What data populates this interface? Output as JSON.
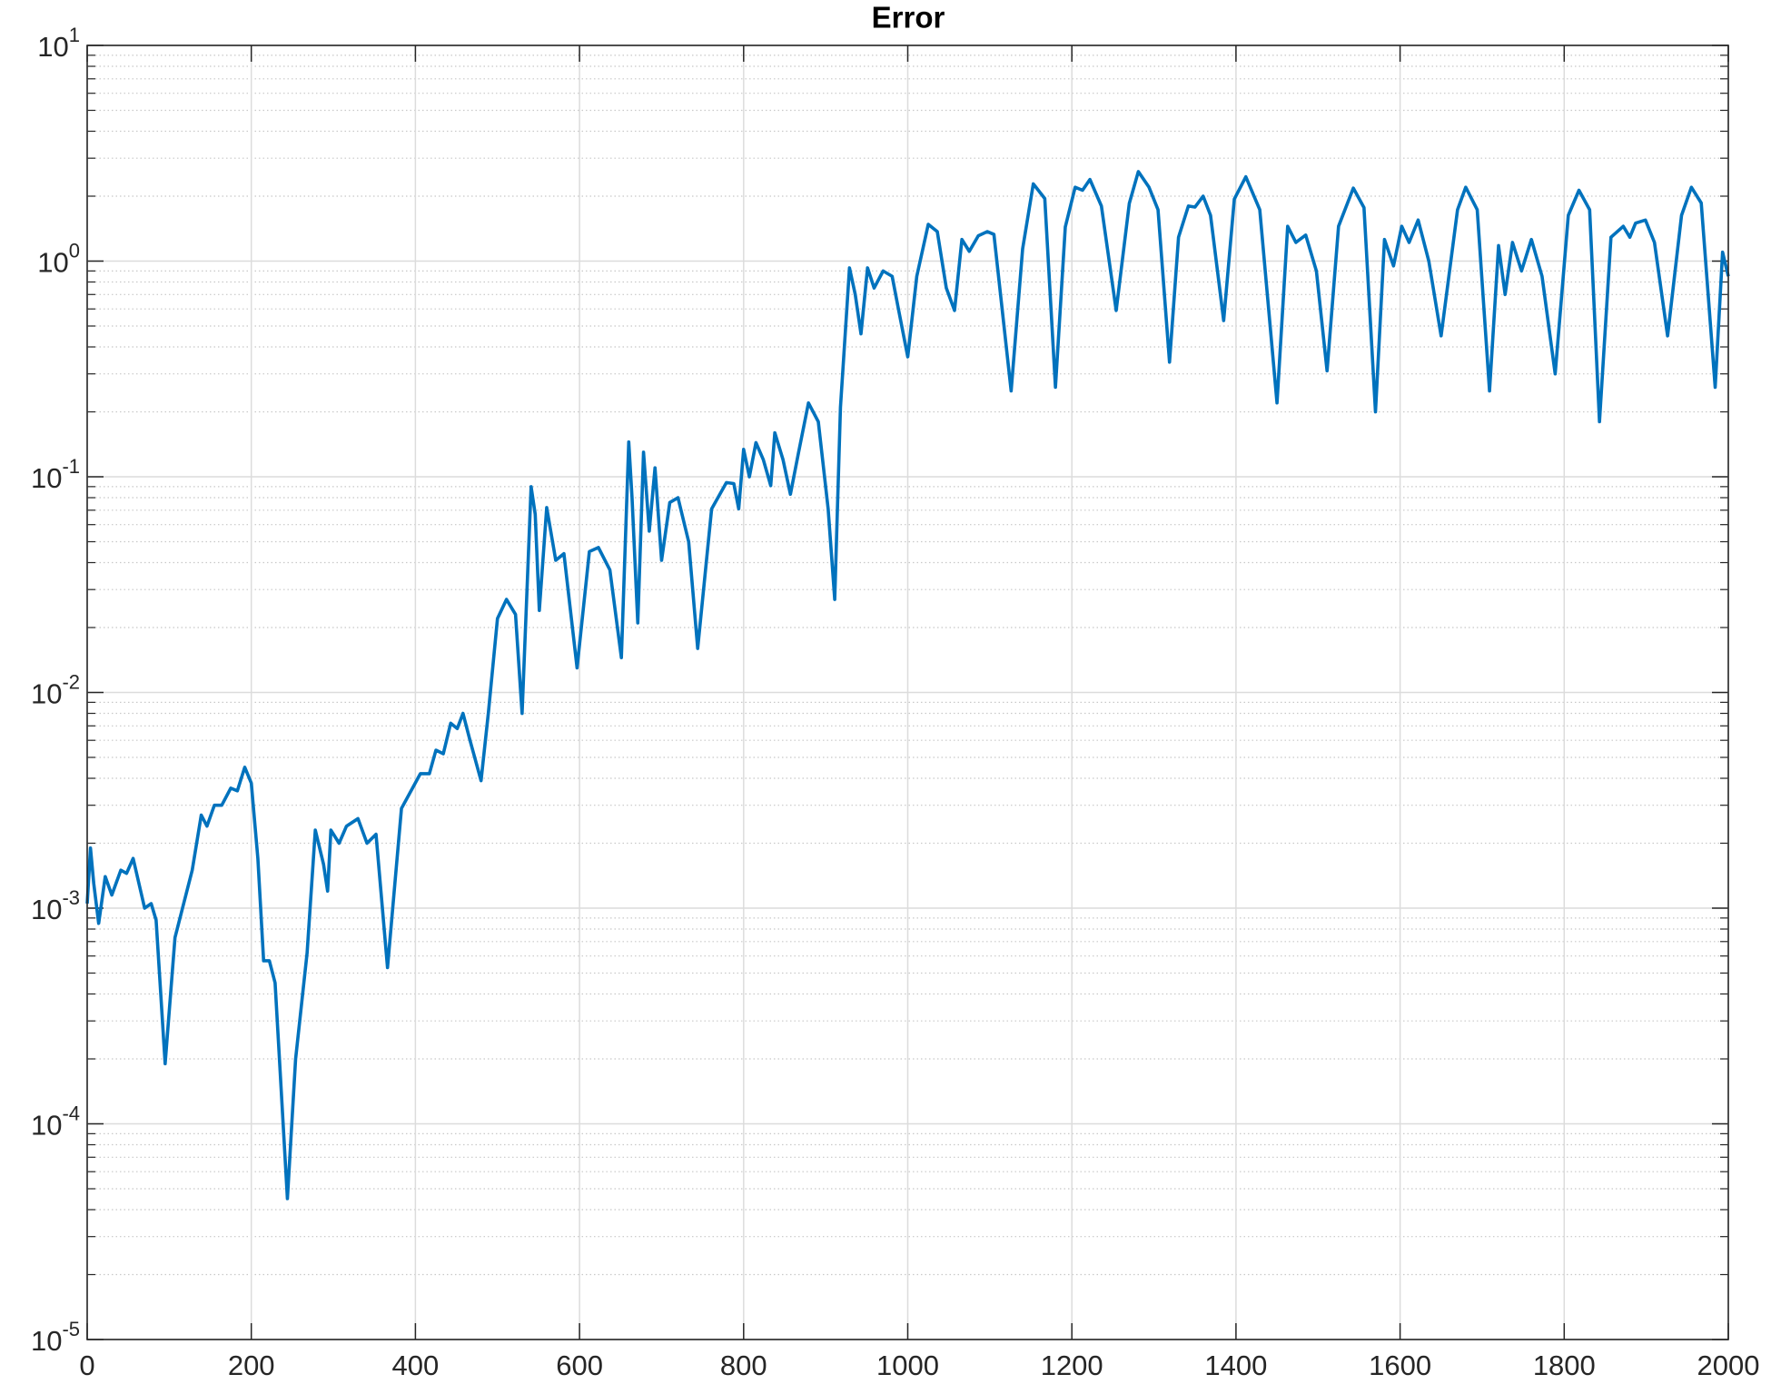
{
  "chart_data": {
    "type": "line",
    "title": "Error",
    "x": [
      0,
      4,
      8,
      14,
      22,
      30,
      41,
      48,
      56,
      70,
      78,
      84,
      95,
      107,
      128,
      139,
      146,
      155,
      164,
      175,
      183,
      192,
      200,
      208,
      215,
      222,
      229,
      244,
      254,
      268,
      278,
      288,
      293,
      297,
      307,
      316,
      330,
      341,
      352,
      366,
      383,
      406,
      417,
      425,
      434,
      443,
      451,
      458,
      466,
      480,
      489,
      500,
      511,
      522,
      530,
      541,
      546,
      551,
      560,
      571,
      581,
      597,
      612,
      623,
      637,
      651,
      660,
      664,
      671,
      678,
      685,
      692,
      700,
      710,
      720,
      733,
      744,
      761,
      779,
      788,
      794,
      800,
      807,
      815,
      824,
      833,
      838,
      848,
      857,
      867,
      879,
      891,
      903,
      911,
      918,
      929,
      936,
      943,
      951,
      959,
      970,
      981,
      989,
      1000,
      1011,
      1025,
      1036,
      1047,
      1057,
      1066,
      1075,
      1086,
      1097,
      1105,
      1126,
      1140,
      1153,
      1167,
      1180,
      1192,
      1204,
      1213,
      1222,
      1236,
      1254,
      1270,
      1281,
      1294,
      1305,
      1319,
      1330,
      1342,
      1350,
      1360,
      1369,
      1385,
      1398,
      1412,
      1429,
      1450,
      1463,
      1473,
      1485,
      1498,
      1511,
      1525,
      1543,
      1556,
      1570,
      1581,
      1592,
      1602,
      1611,
      1622,
      1635,
      1650,
      1670,
      1680,
      1694,
      1709,
      1720,
      1728,
      1737,
      1748,
      1760,
      1773,
      1789,
      1805,
      1818,
      1831,
      1843,
      1857,
      1872,
      1880,
      1887,
      1899,
      1910,
      1926,
      1943,
      1955,
      1967,
      1984,
      1993,
      2000
    ],
    "values": [
      0.00105,
      0.0019,
      0.0013,
      0.00085,
      0.0014,
      0.00115,
      0.0015,
      0.00145,
      0.0017,
      0.001,
      0.00105,
      0.00088,
      0.00019,
      0.00073,
      0.0015,
      0.0027,
      0.0024,
      0.003,
      0.003,
      0.0036,
      0.0035,
      0.0045,
      0.0038,
      0.0017,
      0.00057,
      0.00057,
      0.00045,
      4.5e-05,
      0.0002,
      0.00062,
      0.0023,
      0.0016,
      0.0012,
      0.0023,
      0.002,
      0.0024,
      0.0026,
      0.002,
      0.0022,
      0.00053,
      0.0029,
      0.0042,
      0.0042,
      0.0054,
      0.0052,
      0.0072,
      0.0068,
      0.008,
      0.0061,
      0.0039,
      0.0081,
      0.022,
      0.027,
      0.023,
      0.008,
      0.09,
      0.067,
      0.024,
      0.072,
      0.041,
      0.044,
      0.013,
      0.045,
      0.047,
      0.037,
      0.0145,
      0.145,
      0.08,
      0.021,
      0.13,
      0.056,
      0.11,
      0.041,
      0.076,
      0.08,
      0.05,
      0.016,
      0.071,
      0.094,
      0.093,
      0.071,
      0.134,
      0.1,
      0.144,
      0.12,
      0.091,
      0.16,
      0.12,
      0.083,
      0.13,
      0.22,
      0.18,
      0.071,
      0.027,
      0.21,
      0.93,
      0.7,
      0.46,
      0.93,
      0.75,
      0.9,
      0.85,
      0.59,
      0.36,
      0.85,
      1.48,
      1.37,
      0.75,
      0.59,
      1.26,
      1.11,
      1.31,
      1.37,
      1.33,
      0.25,
      1.14,
      2.28,
      1.95,
      0.26,
      1.44,
      2.2,
      2.13,
      2.39,
      1.8,
      0.59,
      1.85,
      2.6,
      2.2,
      1.73,
      0.34,
      1.29,
      1.8,
      1.78,
      2.0,
      1.63,
      0.53,
      1.94,
      2.46,
      1.73,
      0.22,
      1.45,
      1.22,
      1.32,
      0.9,
      0.31,
      1.45,
      2.18,
      1.77,
      0.2,
      1.26,
      0.95,
      1.45,
      1.22,
      1.55,
      1.0,
      0.45,
      1.73,
      2.2,
      1.73,
      0.25,
      1.18,
      0.7,
      1.22,
      0.9,
      1.26,
      0.85,
      0.3,
      1.63,
      2.13,
      1.73,
      0.18,
      1.29,
      1.45,
      1.29,
      1.5,
      1.55,
      1.22,
      0.45,
      1.63,
      2.2,
      1.86,
      0.26,
      1.1,
      0.85
    ],
    "color": "#0072bd",
    "xlim": [
      0,
      2000
    ],
    "xticks": [
      0,
      200,
      400,
      600,
      800,
      1000,
      1200,
      1400,
      1600,
      1800,
      2000
    ],
    "ylim": [
      1e-05,
      10
    ],
    "yscale": "log",
    "yticks": [
      {
        "value": 1e-05,
        "label": "10^-5"
      },
      {
        "value": 0.0001,
        "label": "10^-4"
      },
      {
        "value": 0.001,
        "label": "10^-3"
      },
      {
        "value": 0.01,
        "label": "10^-2"
      },
      {
        "value": 0.1,
        "label": "10^-1"
      },
      {
        "value": 1,
        "label": "10^0"
      },
      {
        "value": 10,
        "label": "10^1"
      }
    ],
    "grid": true,
    "minor_grid": true
  }
}
